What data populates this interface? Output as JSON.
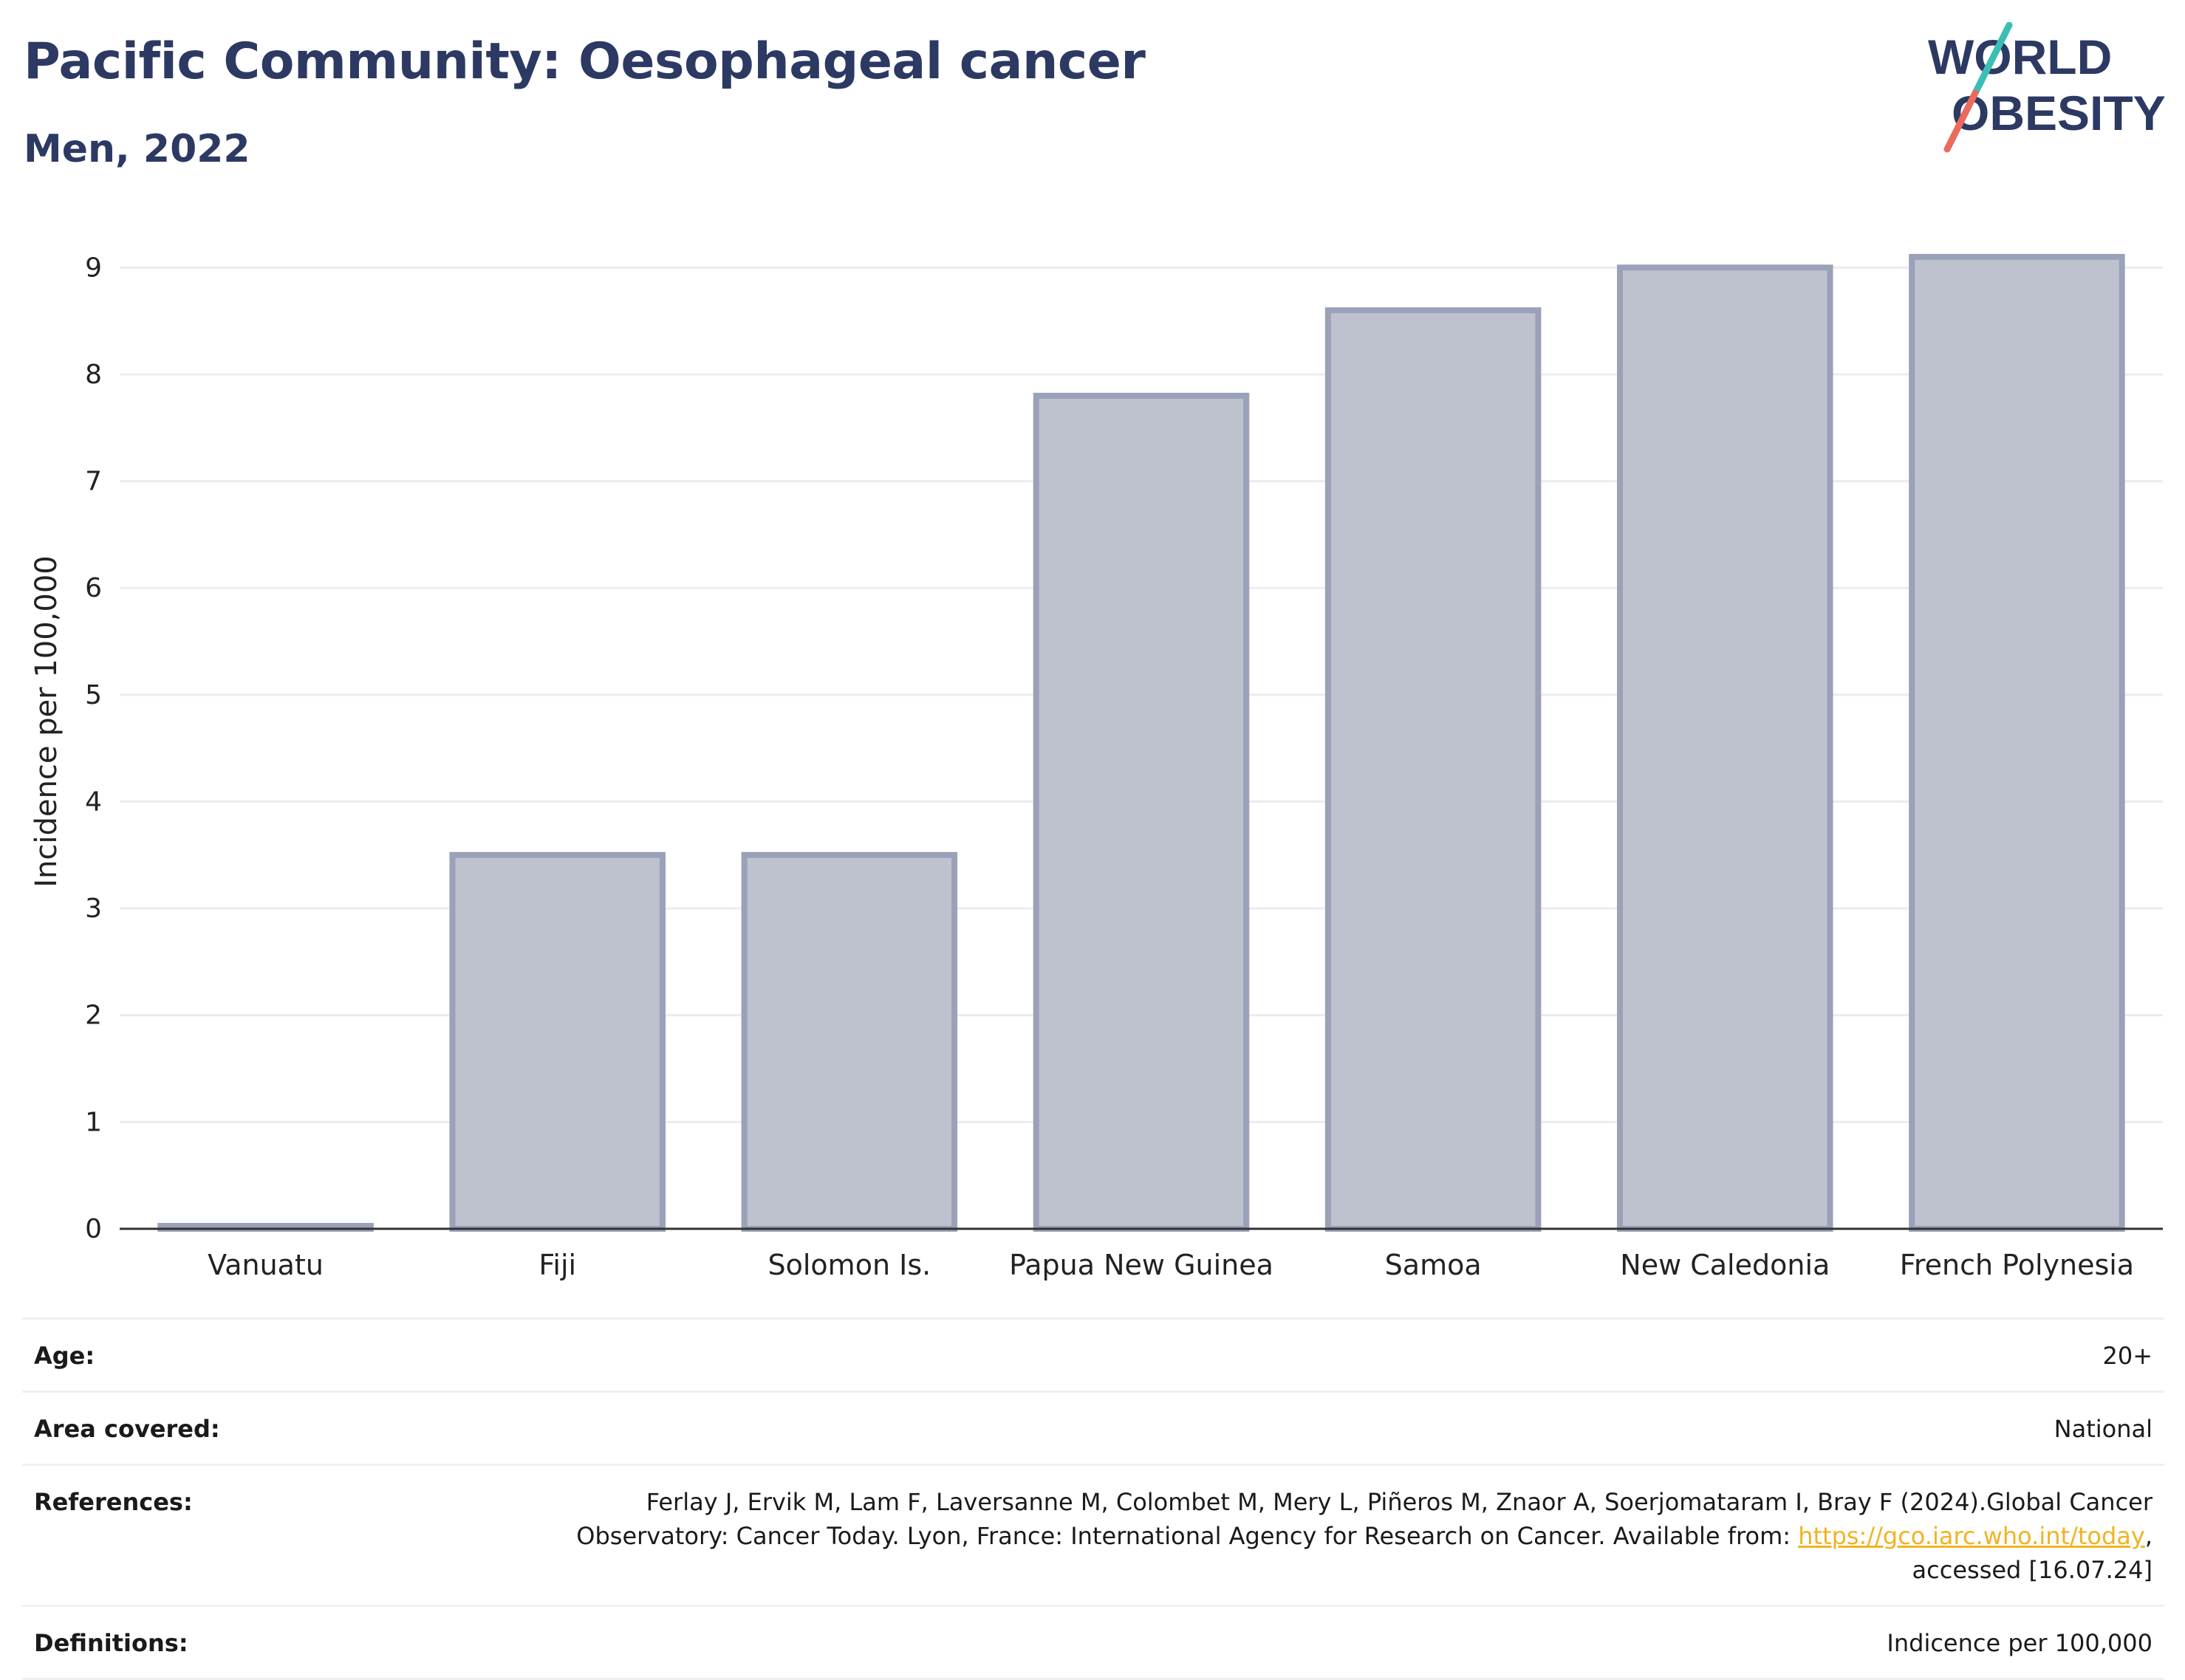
{
  "header": {
    "title": "Pacific Community: Oesophageal cancer",
    "subtitle": "Men, 2022"
  },
  "logo": {
    "line1": "WORLD",
    "line2": "OBESITY"
  },
  "colors": {
    "title": "#2c3963",
    "bar_fill": "#bec2cf",
    "bar_stroke": "#9aa1b8",
    "grid": "#ececf1",
    "link": "#f0b323",
    "logo_teal": "#3bbfb4",
    "logo_coral": "#ec6a5c"
  },
  "chart_data": {
    "type": "bar",
    "categories": [
      "Vanuatu",
      "Fiji",
      "Solomon Is.",
      "Papua New Guinea",
      "Samoa",
      "New Caledonia",
      "French Polynesia"
    ],
    "values": [
      0.02,
      3.5,
      3.5,
      7.8,
      8.6,
      9.0,
      9.1
    ],
    "ylabel": "Incidence per 100,000",
    "xlabel": "",
    "ylim": [
      0,
      9.5
    ],
    "yticks": [
      0,
      1,
      2,
      3,
      4,
      5,
      6,
      7,
      8,
      9
    ],
    "grid": true
  },
  "meta": {
    "age": {
      "label": "Age:",
      "value": "20+"
    },
    "area": {
      "label": "Area covered:",
      "value": "National"
    },
    "references": {
      "label": "References:",
      "line1": "Ferlay J, Ervik M, Lam F, Laversanne M, Colombet M, Mery L, Piñeros M, Znaor A, Soerjomataram I, Bray F (2024).Global Cancer",
      "line2": "Observatory: Cancer Today. Lyon, France: International Agency for Research on Cancer. Available from: ",
      "link": "https://gco.iarc.who.int/today",
      "after_link": ",",
      "line3": "accessed [16.07.24]"
    },
    "definitions": {
      "label": "Definitions:",
      "value": "Indicence per 100,000"
    }
  }
}
